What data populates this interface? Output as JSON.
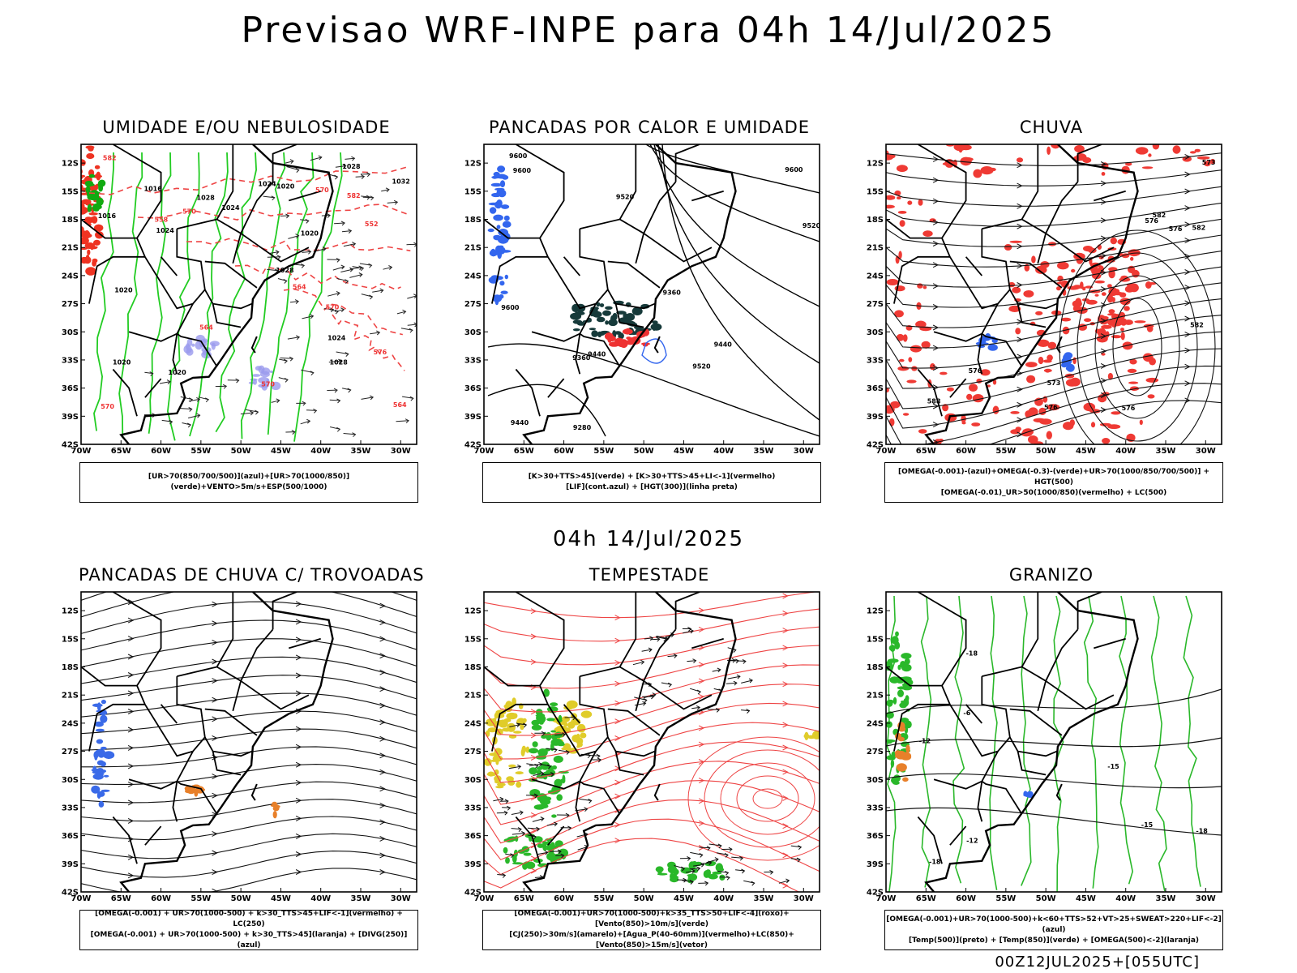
{
  "header": {
    "main_title": "Previsao WRF-INPE  para 04h 14/Jul/2025",
    "mid_title": "04h 14/Jul/2025",
    "run_stamp": "00Z12JUL2025+[055UTC]"
  },
  "axes": {
    "lat_labels": [
      "12S",
      "15S",
      "18S",
      "21S",
      "24S",
      "27S",
      "30S",
      "33S",
      "36S",
      "39S",
      "42S"
    ],
    "lon_labels": [
      "70W",
      "65W",
      "60W",
      "55W",
      "50W",
      "45W",
      "40W",
      "35W",
      "30W"
    ]
  },
  "panels": [
    {
      "id": "umidade",
      "title": "UMIDADE E/OU NEBULOSIDADE",
      "legend": [
        "[UR>70(850/700/500)](azul)+[UR>70(1000/850)](verde)+VENTO>5m/s+ESP(500/1000)"
      ],
      "contour_labels": [
        "1016",
        "1020",
        "1020",
        "1024",
        "1024",
        "1020",
        "1028",
        "1028",
        "1020",
        "1024",
        "570",
        "570",
        "576",
        "582",
        "564",
        "570",
        "570",
        "582",
        "564",
        "558",
        "552",
        "1028",
        "1024",
        "1016",
        "1020",
        "1028",
        "1032",
        "564",
        "570"
      ]
    },
    {
      "id": "pancadas-calor",
      "title": "PANCADAS POR CALOR E UMIDADE",
      "legend": [
        "[K>30+TTS>45](verde) + [K>30+TTS>45+LI<-1](vermelho)",
        "[LIF](cont.azul) + [HGT(300)](linha preta)"
      ],
      "contour_labels": [
        "9600",
        "9600",
        "9600",
        "9600",
        "9520",
        "9520",
        "9520",
        "9440",
        "9440",
        "9440",
        "9360",
        "9360",
        "9280"
      ]
    },
    {
      "id": "chuva",
      "title": "CHUVA",
      "legend": [
        "[OMEGA(-0.001)-(azul)+OMEGA(-0.3)-(verde)+UR>70(1000/850/700/500)] + HGT(500)",
        "[OMEGA(-0.01)_UR>50(1000/850)(vermelho) + LC(500)"
      ],
      "contour_labels": [
        "588",
        "582",
        "582",
        "576",
        "576",
        "576",
        "582",
        "573",
        "573",
        "576",
        "576"
      ]
    },
    {
      "id": "pancadas-trovoadas",
      "title": "PANCADAS DE CHUVA C/ TROVOADAS",
      "legend": [
        "[OMEGA(-0.001) + UR>70(1000-500) + k>30_TTS>45+LIF<-1](vermelho) + LC(250)",
        "[OMEGA(-0.001) + UR>70(1000-500) + k>30_TTS>45](laranja) + [DIVG(250)](azul)"
      ],
      "contour_labels": []
    },
    {
      "id": "tempestade",
      "title": "TEMPESTADE",
      "legend": [
        "[OMEGA(-0.001)+UR>70(1000-500)+k>35_TTS>50+LIF<-4](roxo)+[Vento(850)>10m/s](verde)",
        "[CJ(250)>30m/s](amarelo)+[Agua_P(40-60mm)](vermelho)+LC(850)+[Vento(850)>15m/s](vetor)"
      ],
      "contour_labels": []
    },
    {
      "id": "granizo",
      "title": "GRANIZO",
      "legend": [
        "[OMEGA(-0.001)+UR>70(1000-500)+k<60+TTS>52+VT>25+SWEAT>220+LIF<-2](azul)",
        "[Temp(500)](preto) + [Temp(850)](verde) + [OMEGA(500)<-2](laranja)"
      ],
      "contour_labels": [
        "-6",
        "-12",
        "-15",
        "-12",
        "-18",
        "-18",
        "-15",
        "-18"
      ]
    }
  ]
}
